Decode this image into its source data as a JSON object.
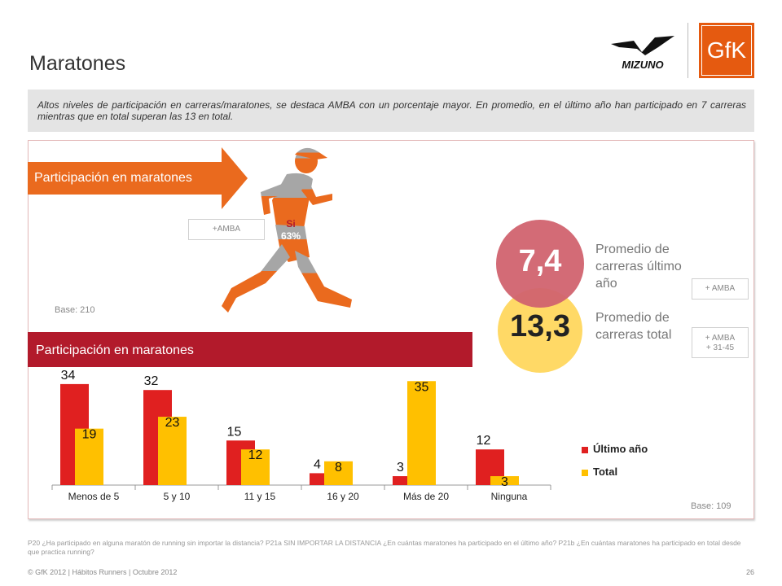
{
  "header": {
    "title": "Maratones",
    "intro": "Altos niveles de participación en carreras/maratones, se destaca AMBA con un porcentaje mayor. En promedio, en el último año han participado en 7 carreras mientras que en total superan las 13 en total.",
    "brand_mizuno": "MIZUNO",
    "brand_gfk": "GfK"
  },
  "participation": {
    "band_label": "Participación en maratones",
    "runner_label_line1": "Si",
    "runner_label_line2": "63%",
    "share_si": 63,
    "amba_tag": "+AMBA",
    "base": "Base: 210"
  },
  "averages": {
    "last_year_value": "7,4",
    "last_year_label_lines": [
      "Promedio de",
      "carreras último",
      "año"
    ],
    "last_year_tag": "+ AMBA",
    "total_value": "13,3",
    "total_label_lines": [
      "Promedio de",
      "carreras total"
    ],
    "total_tag_lines": [
      "+ AMBA",
      "+ 31-45"
    ]
  },
  "frequency": {
    "band_label": "Participación en maratones",
    "base": "Base: 109"
  },
  "chart_data": {
    "type": "bar",
    "categories": [
      "Menos de 5",
      "5 y 10",
      "11 y 15",
      "16 y 20",
      "Más de 20",
      "Ninguna"
    ],
    "series": [
      {
        "name": "Último año",
        "values": [
          34,
          32,
          15,
          4,
          3,
          12
        ],
        "color": "#e02020"
      },
      {
        "name": "Total",
        "values": [
          19,
          23,
          12,
          8,
          35,
          3
        ],
        "color": "#ffc000"
      }
    ],
    "ylim": [
      0,
      40
    ],
    "legend_position": "right",
    "grid": false,
    "title": "",
    "xlabel": "",
    "ylabel": ""
  },
  "colors": {
    "orange": "#ea6a1e",
    "dark_red": "#b21a2b",
    "circle_pink": "#d1636f",
    "circle_yellow": "#ffd966",
    "runner_grey": "#a6a6a6"
  },
  "footer": {
    "question": "P20 ¿Ha participado en alguna maratón de running sin importar la distancia? P21a SIN IMPORTAR LA DISTANCIA ¿En cuántas maratones ha participado en el último año? P21b ¿En cuántas maratones ha participado en total desde que practica running?",
    "copyright": "© GfK 2012 | Hábitos Runners | Octubre 2012",
    "page": "26"
  }
}
